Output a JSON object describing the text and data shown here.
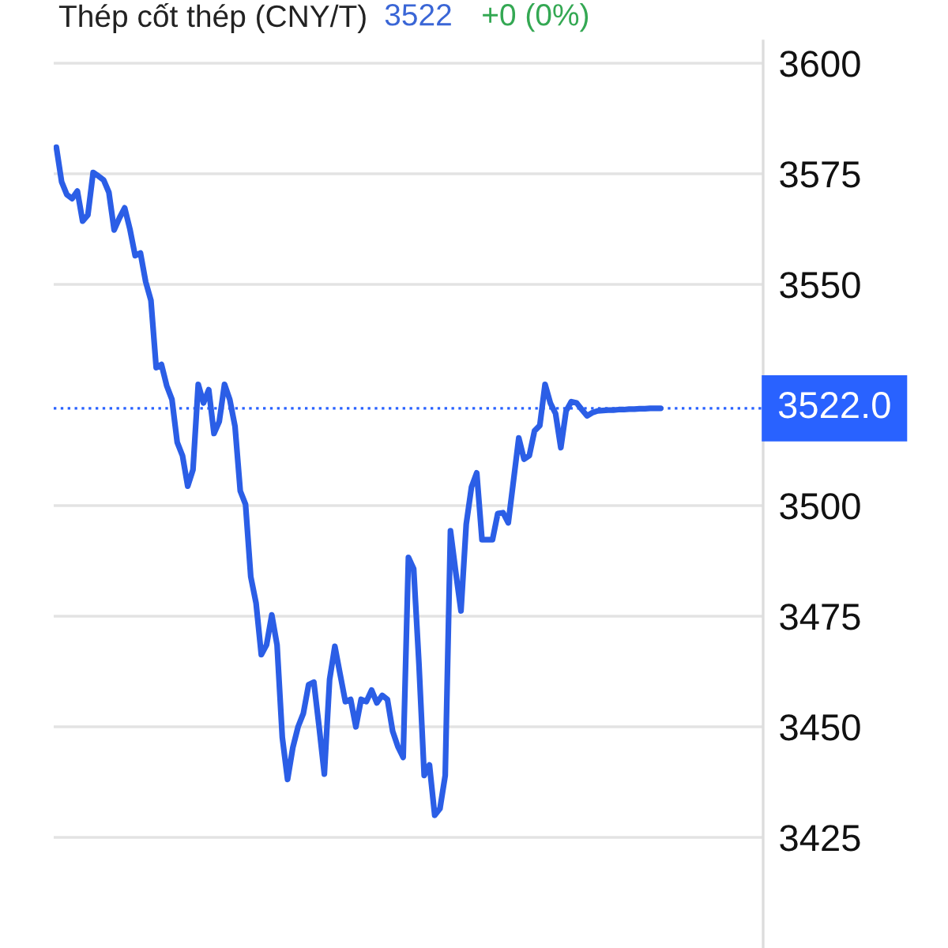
{
  "chart_data": {
    "type": "line",
    "title": "Thép cốt thép (CNY/T)",
    "annotations": [
      "3522",
      "+0 (0%)"
    ],
    "categories": [
      null,
      null,
      null,
      null,
      null,
      null,
      null,
      null,
      null,
      null,
      null,
      null,
      null,
      null,
      null,
      null,
      null,
      null,
      null,
      null,
      null,
      null,
      null,
      null,
      null,
      null,
      null,
      null,
      null,
      null,
      null,
      null,
      null,
      null,
      null,
      null,
      null,
      null,
      null,
      null,
      null,
      null,
      null,
      null,
      null,
      null,
      null,
      null,
      null,
      null,
      null,
      null,
      null,
      null,
      null,
      null,
      null,
      null,
      null,
      null,
      null,
      null,
      null,
      null,
      null,
      null,
      null,
      null,
      null,
      null,
      null,
      null,
      null,
      null,
      null,
      null,
      null,
      null,
      null,
      null,
      null,
      null,
      null,
      null,
      null,
      null,
      null,
      null,
      null,
      null,
      null,
      null,
      null,
      null,
      null,
      null,
      null,
      null,
      null,
      null,
      null,
      null,
      null,
      null,
      null,
      null,
      null,
      null,
      null,
      null,
      null,
      null,
      null,
      null,
      null,
      null,
      null,
      null,
      null,
      null,
      null,
      null,
      null,
      null,
      null,
      null,
      null,
      null,
      null,
      null,
      null,
      null,
      null,
      null,
      null
    ],
    "values": [
      3581,
      3573.2,
      3570.3,
      3569.4,
      3571.1,
      3564.3,
      3565.7,
      3575.3,
      3574.5,
      3573.6,
      3570.8,
      3562.3,
      3565,
      3567.3,
      3562.5,
      3556.5,
      3557.1,
      3550.6,
      3546.4,
      3531.2,
      3531.9,
      3527.1,
      3524,
      3514.3,
      3511.3,
      3504.4,
      3508.1,
      3527.4,
      3523.2,
      3526.2,
      3516.3,
      3519,
      3527.4,
      3524,
      3517.9,
      3503.3,
      3500.3,
      3483.9,
      3478,
      3466.3,
      3468.5,
      3475.3,
      3468.5,
      3447.6,
      3438.1,
      3445.3,
      3450,
      3453,
      3459.5,
      3460.1,
      3450,
      3439.3,
      3460.7,
      3468.2,
      3461.9,
      3455.7,
      3456.2,
      3450,
      3456.2,
      3455.7,
      3458.3,
      3455.4,
      3457.1,
      3456.2,
      3449,
      3445.5,
      3443.1,
      3488.3,
      3485.7,
      3464.3,
      3439,
      3441.4,
      3430,
      3431.5,
      3439,
      3494.3,
      3485,
      3476.2,
      3495.8,
      3504.2,
      3507.4,
      3492.3,
      3492.3,
      3492.3,
      3498.2,
      3498.4,
      3496.1,
      3505.7,
      3515.3,
      3510.5,
      3511.3,
      3516.9,
      3518.1,
      3527.4,
      3523.2,
      3520.8,
      3513.1,
      3521.4,
      3523.5,
      3523.2,
      3521.7,
      3520.3,
      3521,
      3521.4,
      3521.5,
      3521.6,
      3521.6,
      3521.7,
      3521.7,
      3521.8,
      3521.8,
      3521.9,
      3521.9,
      3522,
      3522,
      3522,
      null,
      null,
      null,
      null,
      null,
      null,
      null,
      null,
      null,
      null,
      null,
      null,
      null,
      null,
      null,
      null,
      null,
      null,
      null
    ],
    "color": "#2b5ee6",
    "line_style": "solid",
    "ylim": [
      3400,
      3605
    ],
    "yticks": [
      3425,
      3450,
      3475,
      3500,
      3550,
      3575,
      3600
    ],
    "ref_lines": [
      {
        "axis": "y",
        "value": 3522,
        "label": "3522.0",
        "color": "#2962ff",
        "line_style": "dotted"
      }
    ],
    "grid": "y",
    "tick_labels": "y"
  }
}
